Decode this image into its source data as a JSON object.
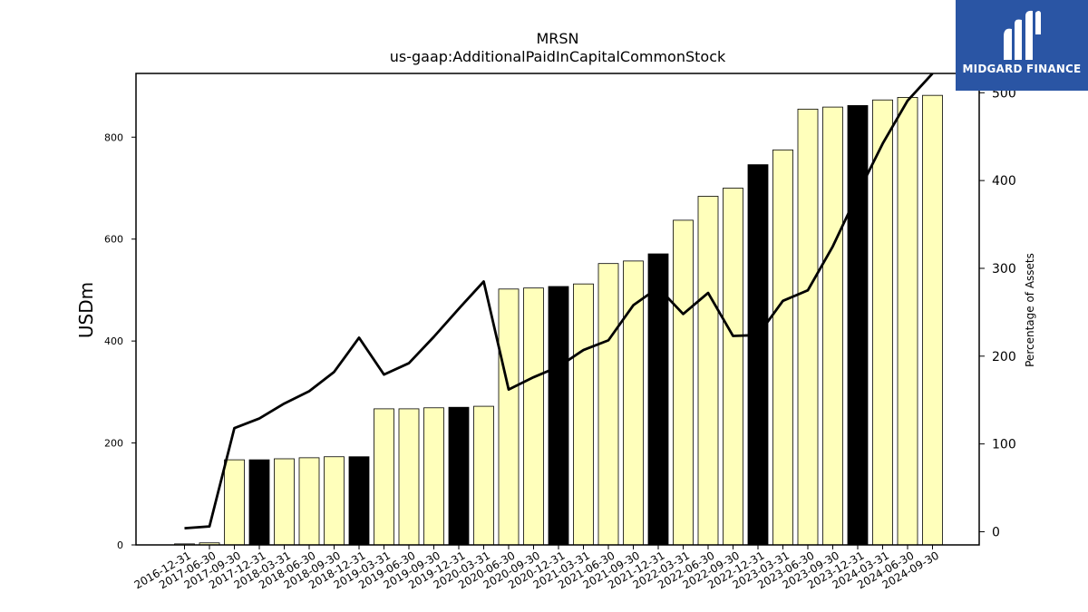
{
  "brand": {
    "logo_text": "MIDGARD FINANCE"
  },
  "chart_data": {
    "type": "bar",
    "title": "MRSN",
    "subtitle": "us-gaap:AdditionalPaidInCapitalCommonStock",
    "ylabel": "USDm",
    "y2label": "Percentage of Assets",
    "ylim": [
      0,
      925
    ],
    "y2lim": [
      -15,
      522
    ],
    "yticks": [
      0,
      200,
      400,
      600,
      800
    ],
    "y2ticks": [
      0,
      100,
      200,
      300,
      400,
      500
    ],
    "categories": [
      "2016-12-31",
      "2017-06-30",
      "2017-09-30",
      "2017-12-31",
      "2018-03-31",
      "2018-06-30",
      "2018-09-30",
      "2018-12-31",
      "2019-03-31",
      "2019-06-30",
      "2019-09-30",
      "2019-12-31",
      "2020-03-31",
      "2020-06-30",
      "2020-09-30",
      "2020-12-31",
      "2021-03-31",
      "2021-06-30",
      "2021-09-30",
      "2021-12-31",
      "2022-03-31",
      "2022-06-30",
      "2022-09-30",
      "2022-12-31",
      "2023-03-31",
      "2023-06-30",
      "2023-09-30",
      "2023-12-31",
      "2024-03-31",
      "2024-06-30",
      "2024-09-30"
    ],
    "series": [
      {
        "type": "bar",
        "axis": "left",
        "values": [
          2,
          4,
          167,
          167,
          169,
          171,
          173,
          173,
          267,
          267,
          269,
          270,
          272,
          502,
          504,
          507,
          512,
          552,
          557,
          571,
          637,
          684,
          700,
          746,
          775,
          855,
          859,
          862,
          873,
          878,
          882
        ]
      },
      {
        "type": "line",
        "axis": "right",
        "values": [
          4,
          6,
          118,
          129,
          146,
          160,
          182,
          221,
          179,
          192,
          222,
          254,
          285,
          162,
          176,
          188,
          207,
          218,
          258,
          278,
          248,
          272,
          223,
          224,
          263,
          275,
          325,
          385,
          442,
          491,
          522
        ]
      }
    ],
    "highlighted_categories": [
      "2017-12-31",
      "2018-12-31",
      "2019-12-31",
      "2020-12-31",
      "2021-12-31",
      "2022-12-31",
      "2023-12-31"
    ],
    "colors": {
      "bar": "#ffffbb",
      "bar_highlight": "#000000",
      "bar_edge": "#000000",
      "line": "#000000"
    },
    "grid": false,
    "legend": "none"
  }
}
